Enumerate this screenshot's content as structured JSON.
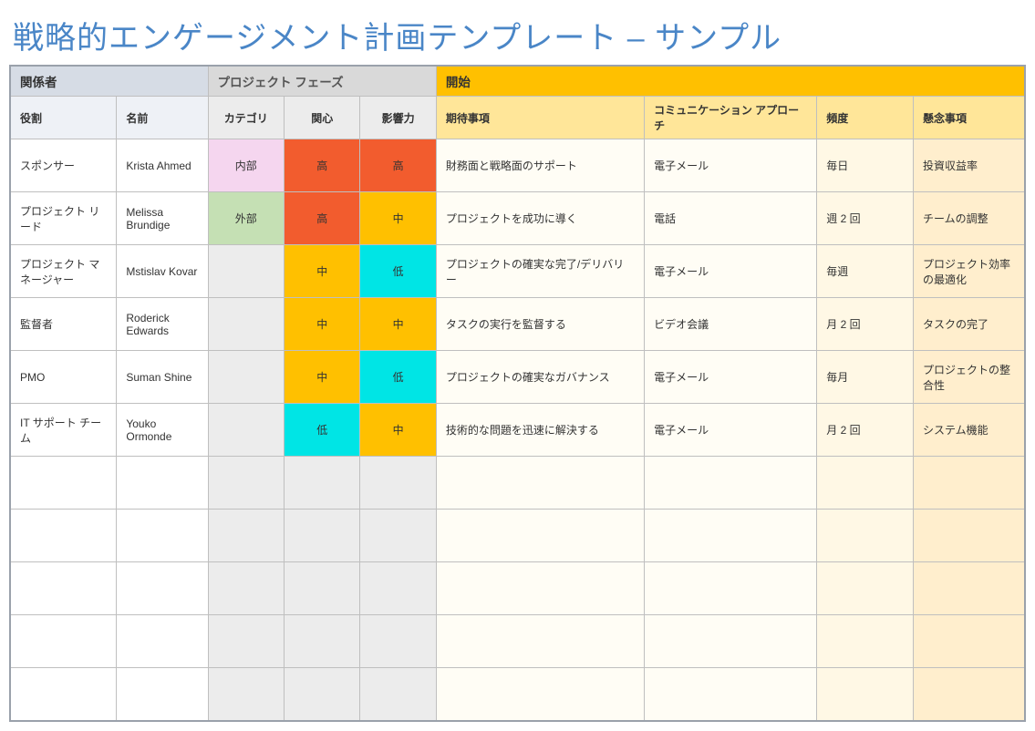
{
  "title": "戦略的エンゲージメント計画テンプレート – サンプル",
  "colors": {
    "title": "#4a86c7",
    "section_stakeholder_bg": "#d6dce5",
    "section_phase_bg": "#d9d9d9",
    "section_begin_bg": "#ffc000",
    "header_stakeholder_bg": "#eef1f6",
    "header_phase_bg": "#ececec",
    "header_begin_bg": "#ffe699",
    "body_greylt": "#ececec",
    "body_cream1": "#fffdf5",
    "body_cream2": "#fff8e5",
    "body_cream3": "#ffeecd",
    "level_high": "#f25c2e",
    "level_mid": "#ffc000",
    "level_low": "#00e5e5",
    "category_internal": "#f5d6ef",
    "category_external": "#c5e0b4",
    "grid_border": "#bfbfbf",
    "outer_border": "#9aa1ab"
  },
  "sections": {
    "stakeholder": "関係者",
    "phase": "プロジェクト フェーズ",
    "begin": "開始"
  },
  "headers": {
    "role": "役割",
    "name": "名前",
    "category": "カテゴリ",
    "interest": "関心",
    "influence": "影響力",
    "expectations": "期待事項",
    "approach": "コミュニケーション アプローチ",
    "frequency": "頻度",
    "concerns": "懸念事項"
  },
  "levels": {
    "high": "高",
    "mid": "中",
    "low": "低"
  },
  "categories": {
    "internal": "内部",
    "external": "外部"
  },
  "column_widths_pct": {
    "role": 10.5,
    "name": 9,
    "category": 7.5,
    "interest": 7.5,
    "influence": 7.5,
    "expectations": 20.5,
    "approach": 17,
    "frequency": 9.5,
    "concerns": 11
  },
  "rows": [
    {
      "role": "スポンサー",
      "name": "Krista Ahmed",
      "category": "internal",
      "interest": "high",
      "influence": "high",
      "expectations": "財務面と戦略面のサポート",
      "approach": "電子メール",
      "frequency": "毎日",
      "concerns": "投資収益率"
    },
    {
      "role": "プロジェクト リード",
      "name": "Melissa Brundige",
      "category": "external",
      "interest": "high",
      "influence": "mid",
      "expectations": "プロジェクトを成功に導く",
      "approach": "電話",
      "frequency": "週 2 回",
      "concerns": "チームの調整"
    },
    {
      "role": "プロジェクト マネージャー",
      "name": "Mstislav Kovar",
      "category": "",
      "interest": "mid",
      "influence": "low",
      "expectations": "プロジェクトの確実な完了/デリバリー",
      "approach": "電子メール",
      "frequency": "毎週",
      "concerns": "プロジェクト効率の最適化"
    },
    {
      "role": "監督者",
      "name": "Roderick Edwards",
      "category": "",
      "interest": "mid",
      "influence": "mid",
      "expectations": "タスクの実行を監督する",
      "approach": "ビデオ会議",
      "frequency": "月 2 回",
      "concerns": "タスクの完了"
    },
    {
      "role": "PMO",
      "name": "Suman Shine",
      "category": "",
      "interest": "mid",
      "influence": "low",
      "expectations": "プロジェクトの確実なガバナンス",
      "approach": "電子メール",
      "frequency": "毎月",
      "concerns": "プロジェクトの整合性"
    },
    {
      "role": "IT サポート チーム",
      "name": "Youko Ormonde",
      "category": "",
      "interest": "low",
      "influence": "mid",
      "expectations": "技術的な問題を迅速に解決する",
      "approach": "電子メール",
      "frequency": "月 2 回",
      "concerns": "システム機能"
    }
  ],
  "empty_rows": 5
}
